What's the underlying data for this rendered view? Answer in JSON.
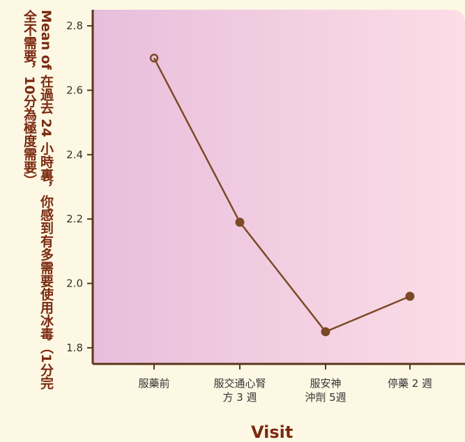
{
  "chart_data": {
    "type": "line",
    "xlabel": "Visit",
    "ylabel": "Mean of 在過去 24 小時裏，你感到有多需要使用冰毒（1分完全不需要，10分為極度需要）",
    "categories": [
      "服藥前",
      "服交通心腎\n方 3 週",
      "服安神\n沖劑 5週",
      "停藥 2 週"
    ],
    "series": [
      {
        "values": [
          2.7,
          2.19,
          1.85,
          1.96
        ]
      }
    ],
    "ylim": [
      1.75,
      2.85
    ],
    "yticks": [
      "1.8",
      "2.0",
      "2.2",
      "2.4",
      "2.6",
      "2.8"
    ],
    "grid": false,
    "colors": {
      "line": "#7a4a26",
      "marker": "#7a4a26",
      "axis": "#5a3518",
      "plot_bg_left": "#e8bedc",
      "plot_bg_right": "#fcdde6",
      "label": "#7a2a10",
      "page_bg": "#fdf8e4"
    }
  }
}
